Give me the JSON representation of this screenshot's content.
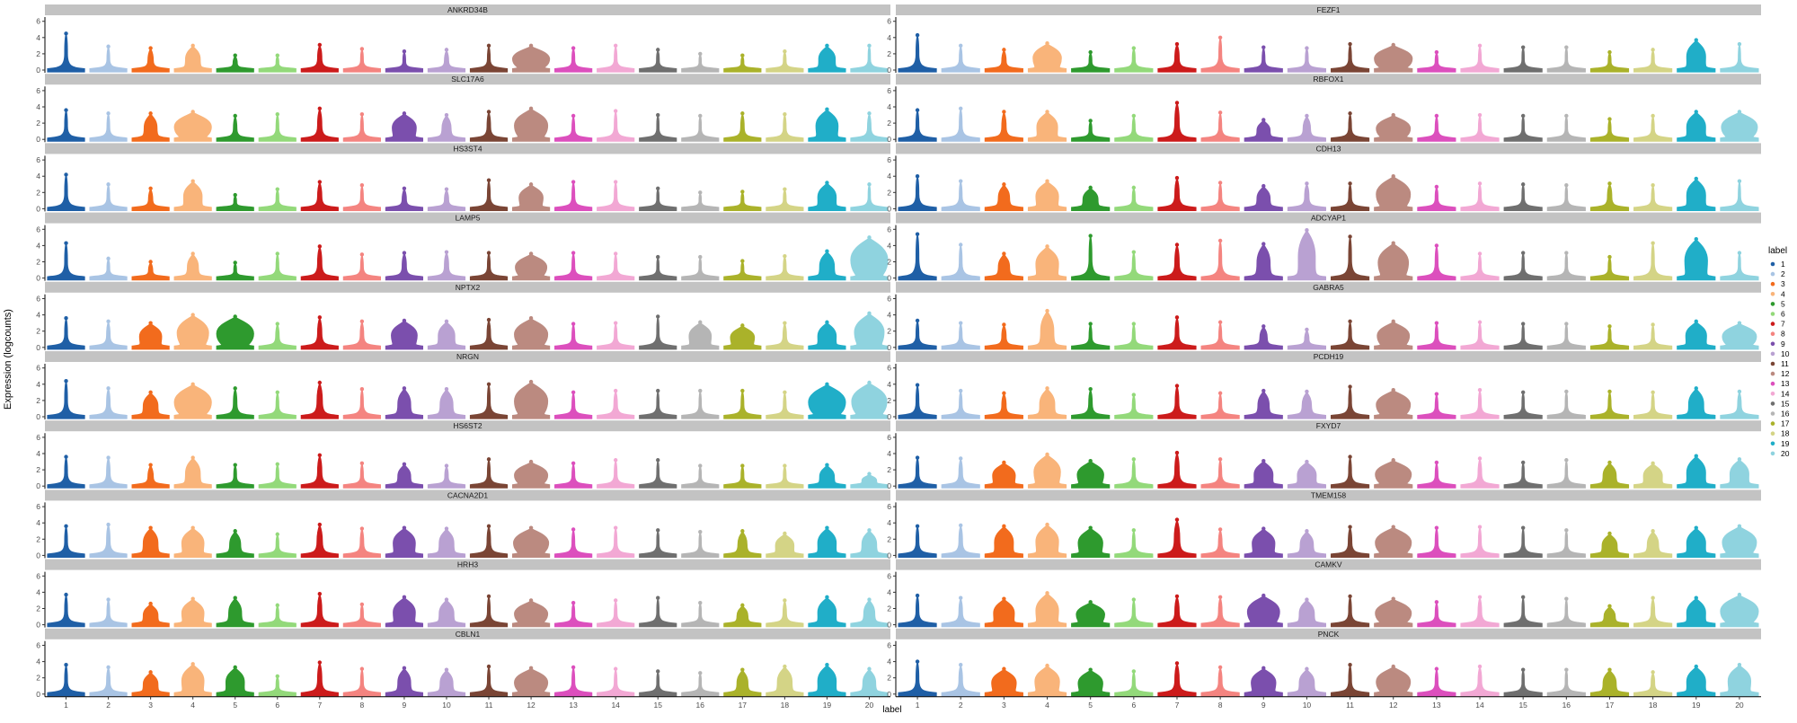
{
  "chart_data": {
    "type": "violin",
    "ylabel": "Expression (logcounts)",
    "xlabel": "label",
    "categories": [
      "1",
      "2",
      "3",
      "4",
      "5",
      "6",
      "7",
      "8",
      "9",
      "10",
      "11",
      "12",
      "13",
      "14",
      "15",
      "16",
      "17",
      "18",
      "19",
      "20"
    ],
    "yticks": [
      0,
      2,
      4,
      6
    ],
    "ylim": [
      0,
      6.3
    ],
    "legend": {
      "title": "label",
      "position": "right",
      "entries": [
        "1",
        "2",
        "3",
        "4",
        "5",
        "6",
        "7",
        "8",
        "9",
        "10",
        "11",
        "12",
        "13",
        "14",
        "15",
        "16",
        "17",
        "18",
        "19",
        "20"
      ]
    },
    "colors": [
      "#1f5fa6",
      "#a9c4e4",
      "#f26b1d",
      "#f9b47a",
      "#2e9a2e",
      "#93d97a",
      "#cc1b1b",
      "#f48480",
      "#7b4fad",
      "#b9a1d2",
      "#7a4535",
      "#bb8a80",
      "#dc4fbd",
      "#f2a8d4",
      "#6f6f6f",
      "#b5b5b5",
      "#aab22a",
      "#d4d486",
      "#20aec8",
      "#8fd3df"
    ],
    "panels": [
      {
        "gene": "ANKRD34B",
        "violin_max": [
          4.5,
          2.9,
          2.7,
          3.0,
          1.8,
          1.8,
          3.1,
          2.6,
          2.3,
          2.5,
          3.0,
          3.0,
          2.7,
          3.0,
          2.5,
          2.0,
          1.8,
          2.3,
          3.0,
          3.0
        ],
        "violin_width": [
          0.08,
          0.08,
          0.15,
          0.4,
          0.12,
          0.08,
          0.12,
          0.08,
          0.08,
          0.12,
          0.08,
          1.0,
          0.08,
          0.08,
          0.08,
          0.05,
          0.08,
          0.08,
          0.45,
          0.05
        ]
      },
      {
        "gene": "FEZF1",
        "violin_max": [
          4.3,
          3.0,
          2.5,
          3.3,
          2.2,
          2.7,
          3.2,
          4.0,
          2.8,
          2.7,
          3.2,
          3.1,
          2.2,
          3.0,
          2.8,
          2.8,
          2.2,
          2.5,
          3.7,
          3.2
        ],
        "violin_width": [
          0.08,
          0.08,
          0.12,
          0.75,
          0.08,
          0.08,
          0.12,
          0.08,
          0.08,
          0.08,
          0.08,
          1.0,
          0.08,
          0.08,
          0.05,
          0.05,
          0.08,
          0.08,
          0.5,
          0.05
        ]
      },
      {
        "gene": "SLC17A6",
        "violin_max": [
          3.6,
          3.2,
          3.2,
          3.4,
          2.9,
          3.1,
          3.8,
          3.1,
          3.2,
          3.0,
          3.4,
          3.8,
          2.9,
          3.5,
          3.0,
          2.9,
          3.2,
          3.1,
          3.7,
          3.2
        ],
        "violin_width": [
          0.08,
          0.08,
          0.35,
          1.0,
          0.1,
          0.08,
          0.12,
          0.08,
          0.65,
          0.25,
          0.1,
          0.9,
          0.08,
          0.08,
          0.05,
          0.05,
          0.1,
          0.08,
          0.6,
          0.1
        ]
      },
      {
        "gene": "RBFOX1",
        "violin_max": [
          3.6,
          3.8,
          3.4,
          3.4,
          2.3,
          2.9,
          4.5,
          3.3,
          2.4,
          2.9,
          3.2,
          3.0,
          2.9,
          3.0,
          2.9,
          2.9,
          2.5,
          2.9,
          3.4,
          3.4
        ],
        "violin_width": [
          0.08,
          0.08,
          0.12,
          0.55,
          0.08,
          0.08,
          0.12,
          0.08,
          0.35,
          0.2,
          0.08,
          0.9,
          0.08,
          0.08,
          0.05,
          0.05,
          0.08,
          0.08,
          0.5,
          0.95
        ]
      },
      {
        "gene": "HS3ST4",
        "violin_max": [
          4.2,
          3.0,
          2.5,
          3.4,
          1.7,
          2.4,
          3.3,
          2.9,
          2.5,
          2.4,
          3.5,
          3.0,
          3.3,
          3.3,
          2.5,
          2.0,
          2.1,
          2.4,
          3.2,
          3.0
        ],
        "violin_width": [
          0.08,
          0.08,
          0.12,
          0.5,
          0.08,
          0.08,
          0.12,
          0.08,
          0.12,
          0.12,
          0.08,
          0.65,
          0.08,
          0.08,
          0.05,
          0.05,
          0.08,
          0.08,
          0.5,
          0.05
        ]
      },
      {
        "gene": "CDH13",
        "violin_max": [
          4.0,
          3.4,
          3.0,
          3.4,
          2.6,
          2.6,
          3.8,
          3.2,
          2.8,
          3.1,
          3.1,
          4.0,
          2.7,
          3.1,
          3.0,
          2.9,
          3.1,
          2.9,
          3.7,
          3.4
        ],
        "violin_width": [
          0.08,
          0.08,
          0.3,
          0.6,
          0.4,
          0.08,
          0.12,
          0.08,
          0.35,
          0.12,
          0.08,
          0.9,
          0.08,
          0.08,
          0.05,
          0.05,
          0.12,
          0.08,
          0.5,
          0.05
        ]
      },
      {
        "gene": "LAMP5",
        "violin_max": [
          4.3,
          2.4,
          2.0,
          3.0,
          1.9,
          3.0,
          3.9,
          2.9,
          3.1,
          3.2,
          3.1,
          3.0,
          3.1,
          3.0,
          2.6,
          2.6,
          2.1,
          2.7,
          3.3,
          5.0
        ],
        "violin_width": [
          0.08,
          0.08,
          0.12,
          0.3,
          0.08,
          0.08,
          0.12,
          0.08,
          0.12,
          0.12,
          0.08,
          0.85,
          0.08,
          0.08,
          0.05,
          0.05,
          0.08,
          0.08,
          0.4,
          1.0
        ]
      },
      {
        "gene": "ADCYAP1",
        "violin_max": [
          5.4,
          4.1,
          3.0,
          3.9,
          5.2,
          3.2,
          4.1,
          4.6,
          4.2,
          5.9,
          5.1,
          4.3,
          4.0,
          3.0,
          3.1,
          3.1,
          2.6,
          4.3,
          4.8,
          3.1
        ],
        "violin_width": [
          0.08,
          0.08,
          0.3,
          0.6,
          0.08,
          0.08,
          0.12,
          0.08,
          0.35,
          0.45,
          0.08,
          0.8,
          0.08,
          0.08,
          0.05,
          0.05,
          0.08,
          0.08,
          0.6,
          0.05
        ]
      },
      {
        "gene": "NPTX2",
        "violin_max": [
          3.6,
          3.2,
          3.0,
          4.0,
          3.8,
          2.9,
          3.7,
          3.2,
          3.3,
          3.2,
          3.4,
          3.6,
          2.9,
          3.0,
          3.8,
          3.1,
          2.7,
          3.0,
          3.1,
          4.2
        ],
        "violin_width": [
          0.08,
          0.1,
          0.6,
          0.85,
          1.0,
          0.1,
          0.12,
          0.1,
          0.7,
          0.45,
          0.1,
          0.9,
          0.08,
          0.08,
          0.05,
          0.6,
          0.65,
          0.1,
          0.5,
          0.8
        ]
      },
      {
        "gene": "GABRA5",
        "violin_max": [
          3.3,
          3.0,
          2.8,
          4.5,
          2.9,
          2.9,
          3.7,
          3.1,
          2.6,
          2.2,
          3.2,
          3.2,
          3.0,
          3.1,
          2.9,
          2.9,
          2.6,
          2.8,
          3.2,
          3.0
        ],
        "violin_width": [
          0.08,
          0.08,
          0.12,
          0.35,
          0.08,
          0.08,
          0.1,
          0.08,
          0.2,
          0.12,
          0.08,
          0.85,
          0.08,
          0.08,
          0.05,
          0.05,
          0.08,
          0.08,
          0.55,
          0.9
        ]
      },
      {
        "gene": "NRGN",
        "violin_max": [
          4.4,
          3.5,
          3.0,
          4.0,
          3.5,
          3.0,
          4.2,
          3.4,
          3.5,
          3.4,
          4.0,
          4.3,
          3.0,
          3.2,
          3.2,
          3.2,
          3.2,
          3.0,
          4.0,
          4.2
        ],
        "violin_width": [
          0.08,
          0.1,
          0.4,
          1.0,
          0.1,
          0.08,
          0.15,
          0.08,
          0.35,
          0.35,
          0.08,
          0.9,
          0.08,
          0.1,
          0.05,
          0.05,
          0.08,
          0.08,
          1.0,
          0.95
        ]
      },
      {
        "gene": "PCDH19",
        "violin_max": [
          3.9,
          3.2,
          2.9,
          3.5,
          3.4,
          2.7,
          3.8,
          2.9,
          3.2,
          3.1,
          3.7,
          3.3,
          2.8,
          3.3,
          3.0,
          3.1,
          3.1,
          3.0,
          3.5,
          3.1
        ],
        "violin_width": [
          0.08,
          0.08,
          0.12,
          0.4,
          0.1,
          0.08,
          0.1,
          0.08,
          0.3,
          0.25,
          0.08,
          0.9,
          0.08,
          0.08,
          0.05,
          0.05,
          0.08,
          0.08,
          0.4,
          0.1
        ]
      },
      {
        "gene": "HS6ST2",
        "violin_max": [
          3.6,
          3.5,
          2.6,
          3.5,
          2.6,
          2.7,
          3.8,
          2.8,
          2.7,
          2.5,
          3.3,
          3.0,
          2.8,
          3.2,
          3.2,
          2.5,
          2.5,
          2.5,
          2.6,
          1.5
        ],
        "violin_width": [
          0.08,
          0.1,
          0.15,
          0.4,
          0.08,
          0.08,
          0.12,
          0.08,
          0.35,
          0.1,
          0.08,
          0.9,
          0.08,
          0.08,
          0.05,
          0.05,
          0.08,
          0.08,
          0.4,
          0.4
        ]
      },
      {
        "gene": "FXYD7",
        "violin_max": [
          3.5,
          3.4,
          2.9,
          3.9,
          3.1,
          3.3,
          4.1,
          3.3,
          3.1,
          3.0,
          3.6,
          3.2,
          2.9,
          3.4,
          2.9,
          3.2,
          2.9,
          2.8,
          3.7,
          3.3
        ],
        "violin_width": [
          0.08,
          0.1,
          0.6,
          0.7,
          0.7,
          0.08,
          0.12,
          0.08,
          0.5,
          0.5,
          0.08,
          0.95,
          0.08,
          0.1,
          0.05,
          0.05,
          0.35,
          0.5,
          0.5,
          0.5
        ]
      },
      {
        "gene": "CACNA2D1",
        "violin_max": [
          3.6,
          3.8,
          3.4,
          3.4,
          3.0,
          2.6,
          3.8,
          3.3,
          3.4,
          3.3,
          3.6,
          3.4,
          3.2,
          3.4,
          3.1,
          2.9,
          3.0,
          2.7,
          3.4,
          3.1
        ],
        "violin_width": [
          0.08,
          0.1,
          0.4,
          0.6,
          0.3,
          0.08,
          0.15,
          0.1,
          0.6,
          0.4,
          0.1,
          0.95,
          0.08,
          0.08,
          0.05,
          0.05,
          0.25,
          0.5,
          0.5,
          0.4
        ]
      },
      {
        "gene": "TMEM158",
        "violin_max": [
          3.6,
          3.7,
          3.6,
          3.8,
          3.4,
          3.1,
          4.4,
          3.2,
          3.3,
          3.0,
          3.5,
          3.5,
          3.4,
          3.5,
          3.4,
          3.1,
          2.7,
          3.0,
          3.4,
          3.6
        ],
        "violin_width": [
          0.08,
          0.1,
          0.5,
          0.6,
          0.65,
          0.08,
          0.15,
          0.1,
          0.6,
          0.35,
          0.1,
          0.95,
          0.08,
          0.08,
          0.05,
          0.05,
          0.4,
          0.3,
          0.5,
          0.9
        ]
      },
      {
        "gene": "HRH3",
        "violin_max": [
          3.7,
          3.1,
          2.6,
          3.2,
          3.3,
          2.4,
          3.8,
          2.5,
          3.4,
          3.1,
          3.5,
          3.0,
          2.7,
          3.0,
          3.3,
          2.7,
          2.4,
          3.0,
          3.4,
          3.1
        ],
        "violin_width": [
          0.08,
          0.08,
          0.4,
          0.6,
          0.35,
          0.08,
          0.12,
          0.08,
          0.6,
          0.4,
          0.08,
          0.9,
          0.08,
          0.08,
          0.05,
          0.05,
          0.3,
          0.1,
          0.5,
          0.3
        ]
      },
      {
        "gene": "CAMKV",
        "violin_max": [
          3.6,
          3.3,
          3.2,
          3.9,
          2.8,
          3.1,
          3.5,
          3.4,
          3.6,
          3.1,
          3.5,
          3.2,
          2.8,
          3.4,
          3.4,
          3.2,
          2.3,
          3.3,
          3.3,
          3.7
        ],
        "violin_width": [
          0.08,
          0.1,
          0.55,
          0.6,
          0.75,
          0.08,
          0.12,
          0.1,
          0.85,
          0.4,
          0.08,
          0.95,
          0.08,
          0.1,
          0.05,
          0.05,
          0.3,
          0.1,
          0.5,
          1.0
        ]
      },
      {
        "gene": "CBLN1",
        "violin_max": [
          3.6,
          3.3,
          2.7,
          3.7,
          3.3,
          2.2,
          3.9,
          3.1,
          3.2,
          3.0,
          3.4,
          3.2,
          3.3,
          3.1,
          2.8,
          2.6,
          3.0,
          3.4,
          3.6,
          3.1
        ],
        "violin_width": [
          0.08,
          0.1,
          0.4,
          0.6,
          0.5,
          0.08,
          0.12,
          0.08,
          0.35,
          0.35,
          0.08,
          0.9,
          0.08,
          0.08,
          0.05,
          0.05,
          0.3,
          0.4,
          0.5,
          0.35
        ]
      },
      {
        "gene": "PNCK",
        "violin_max": [
          4.0,
          3.6,
          3.1,
          3.5,
          3.0,
          2.8,
          3.8,
          3.3,
          3.2,
          3.1,
          3.6,
          3.4,
          3.1,
          3.4,
          3.0,
          3.0,
          3.0,
          2.7,
          3.4,
          3.6
        ],
        "violin_width": [
          0.08,
          0.1,
          0.65,
          0.65,
          0.65,
          0.08,
          0.12,
          0.1,
          0.65,
          0.4,
          0.08,
          0.9,
          0.08,
          0.1,
          0.05,
          0.05,
          0.35,
          0.1,
          0.5,
          0.6
        ]
      }
    ]
  }
}
